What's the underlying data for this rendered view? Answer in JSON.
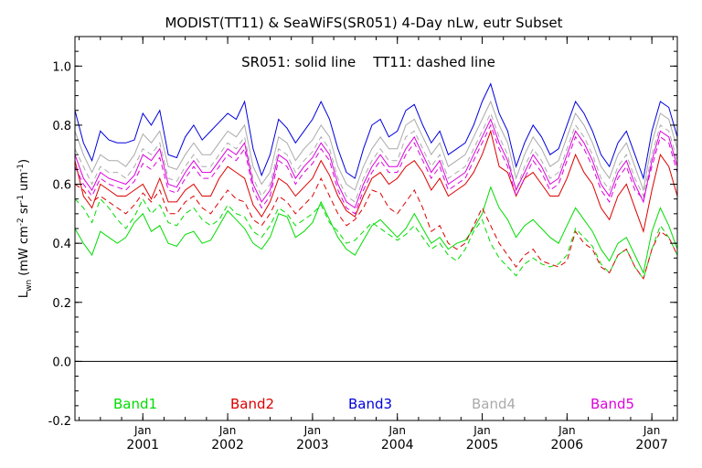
{
  "chart_data": {
    "type": "line",
    "title": "MODIST(TT11) & SeaWiFS(SR051) 4-Day nLw, eutr Subset",
    "subtitle": "SR051: solid line    TT11: dashed line",
    "ylabel_main": "L",
    "ylabel_sub": "wn",
    "ylabel_units": "(mW cm",
    "ylabel_exp1": "-2",
    "ylabel_mid": " sr",
    "ylabel_exp2": "-1",
    "ylabel_mid2": " um",
    "ylabel_exp3": "-1",
    "ylabel_end": ")",
    "ylim": [
      -0.2,
      1.1
    ],
    "yticks": [
      -0.2,
      0.0,
      0.2,
      0.4,
      0.6,
      0.8,
      1.0
    ],
    "ytick_labels": [
      "-0.2",
      "0.0",
      "0.2",
      "0.4",
      "0.6",
      "0.8",
      "1.0"
    ],
    "xlim": [
      2000.2,
      2007.3
    ],
    "xticks": [
      {
        "month": "Jan",
        "year": "2001",
        "x": 2001.0
      },
      {
        "month": "Jan",
        "year": "2002",
        "x": 2002.0
      },
      {
        "month": "Jan",
        "year": "2003",
        "x": 2003.0
      },
      {
        "month": "Jan",
        "year": "2004",
        "x": 2004.0
      },
      {
        "month": "Jan",
        "year": "2005",
        "x": 2005.0
      },
      {
        "month": "Jan",
        "year": "2006",
        "x": 2006.0
      },
      {
        "month": "Jan",
        "year": "2007",
        "x": 2007.0
      }
    ],
    "zero_line": 0.0,
    "x": [
      2000.2,
      2000.3,
      2000.4,
      2000.5,
      2000.6,
      2000.7,
      2000.8,
      2000.9,
      2001.0,
      2001.1,
      2001.2,
      2001.3,
      2001.4,
      2001.5,
      2001.6,
      2001.7,
      2001.8,
      2001.9,
      2002.0,
      2002.1,
      2002.2,
      2002.3,
      2002.4,
      2002.5,
      2002.6,
      2002.7,
      2002.8,
      2002.9,
      2003.0,
      2003.1,
      2003.2,
      2003.3,
      2003.4,
      2003.5,
      2003.6,
      2003.7,
      2003.8,
      2003.9,
      2004.0,
      2004.1,
      2004.2,
      2004.3,
      2004.4,
      2004.5,
      2004.6,
      2004.7,
      2004.8,
      2004.9,
      2005.0,
      2005.1,
      2005.2,
      2005.3,
      2005.4,
      2005.5,
      2005.6,
      2005.7,
      2005.8,
      2005.9,
      2006.0,
      2006.1,
      2006.2,
      2006.3,
      2006.4,
      2006.5,
      2006.6,
      2006.7,
      2006.8,
      2006.9,
      2007.0,
      2007.1,
      2007.2,
      2007.3
    ],
    "series": [
      {
        "name": "Band1",
        "color": "#00dd00",
        "solid": [
          0.45,
          0.4,
          0.36,
          0.44,
          0.42,
          0.4,
          0.42,
          0.47,
          0.5,
          0.44,
          0.46,
          0.4,
          0.39,
          0.43,
          0.44,
          0.4,
          0.41,
          0.46,
          0.51,
          0.48,
          0.45,
          0.4,
          0.38,
          0.42,
          0.5,
          0.49,
          0.42,
          0.44,
          0.47,
          0.54,
          0.48,
          0.42,
          0.38,
          0.36,
          0.41,
          0.46,
          0.48,
          0.45,
          0.42,
          0.45,
          0.5,
          0.45,
          0.4,
          0.42,
          0.38,
          0.4,
          0.41,
          0.45,
          0.5,
          0.59,
          0.52,
          0.48,
          0.42,
          0.46,
          0.48,
          0.45,
          0.42,
          0.4,
          0.46,
          0.52,
          0.48,
          0.44,
          0.38,
          0.34,
          0.4,
          0.42,
          0.36,
          0.3,
          0.44,
          0.52,
          0.46,
          0.38
        ],
        "dashed": [
          0.55,
          0.52,
          0.47,
          0.55,
          0.52,
          0.48,
          0.45,
          0.49,
          0.55,
          0.5,
          0.53,
          0.47,
          0.46,
          0.5,
          0.52,
          0.48,
          0.46,
          0.48,
          0.53,
          0.5,
          0.49,
          0.44,
          0.42,
          0.46,
          0.52,
          0.5,
          0.46,
          0.48,
          0.5,
          0.53,
          0.47,
          0.44,
          0.4,
          0.41,
          0.44,
          0.47,
          0.45,
          0.43,
          0.41,
          0.43,
          0.46,
          0.42,
          0.38,
          0.4,
          0.36,
          0.34,
          0.38,
          0.44,
          0.48,
          0.4,
          0.35,
          0.32,
          0.29,
          0.33,
          0.35,
          0.33,
          0.32,
          0.33,
          0.36,
          0.45,
          0.42,
          0.39,
          0.33,
          0.3,
          0.36,
          0.38,
          0.32,
          0.28,
          0.38,
          0.46,
          0.42,
          0.36
        ]
      },
      {
        "name": "Band2",
        "color": "#dd0000",
        "solid": [
          0.68,
          0.56,
          0.52,
          0.6,
          0.58,
          0.56,
          0.56,
          0.58,
          0.6,
          0.55,
          0.62,
          0.54,
          0.54,
          0.58,
          0.6,
          0.56,
          0.56,
          0.62,
          0.66,
          0.64,
          0.62,
          0.53,
          0.49,
          0.54,
          0.62,
          0.6,
          0.56,
          0.59,
          0.62,
          0.68,
          0.63,
          0.56,
          0.51,
          0.49,
          0.56,
          0.62,
          0.64,
          0.6,
          0.62,
          0.66,
          0.68,
          0.64,
          0.58,
          0.62,
          0.56,
          0.58,
          0.6,
          0.64,
          0.7,
          0.78,
          0.66,
          0.64,
          0.56,
          0.62,
          0.64,
          0.6,
          0.56,
          0.56,
          0.62,
          0.7,
          0.64,
          0.6,
          0.52,
          0.48,
          0.56,
          0.6,
          0.52,
          0.44,
          0.58,
          0.7,
          0.66,
          0.56
        ],
        "dashed": [
          0.6,
          0.58,
          0.54,
          0.56,
          0.54,
          0.52,
          0.5,
          0.53,
          0.57,
          0.54,
          0.58,
          0.5,
          0.5,
          0.54,
          0.56,
          0.52,
          0.5,
          0.54,
          0.58,
          0.55,
          0.54,
          0.48,
          0.46,
          0.5,
          0.56,
          0.54,
          0.5,
          0.53,
          0.56,
          0.62,
          0.56,
          0.5,
          0.46,
          0.48,
          0.52,
          0.58,
          0.57,
          0.52,
          0.5,
          0.54,
          0.58,
          0.52,
          0.44,
          0.46,
          0.4,
          0.38,
          0.4,
          0.46,
          0.52,
          0.46,
          0.4,
          0.36,
          0.32,
          0.36,
          0.38,
          0.34,
          0.33,
          0.32,
          0.34,
          0.44,
          0.4,
          0.38,
          0.32,
          0.3,
          0.36,
          0.38,
          0.32,
          0.28,
          0.38,
          0.44,
          0.42,
          0.36
        ]
      },
      {
        "name": "Band3",
        "color": "#0000dd",
        "solid": [
          0.85,
          0.74,
          0.68,
          0.78,
          0.75,
          0.74,
          0.74,
          0.75,
          0.84,
          0.8,
          0.85,
          0.7,
          0.69,
          0.76,
          0.8,
          0.75,
          0.78,
          0.81,
          0.84,
          0.82,
          0.88,
          0.72,
          0.63,
          0.7,
          0.82,
          0.79,
          0.74,
          0.78,
          0.82,
          0.88,
          0.82,
          0.72,
          0.64,
          0.62,
          0.72,
          0.8,
          0.82,
          0.76,
          0.78,
          0.85,
          0.87,
          0.8,
          0.74,
          0.78,
          0.7,
          0.72,
          0.74,
          0.8,
          0.88,
          0.94,
          0.84,
          0.78,
          0.66,
          0.74,
          0.8,
          0.76,
          0.7,
          0.72,
          0.8,
          0.88,
          0.84,
          0.78,
          0.7,
          0.66,
          0.74,
          0.78,
          0.7,
          0.62,
          0.78,
          0.88,
          0.86,
          0.76
        ]
      },
      {
        "name": "Band4",
        "color": "#aaaaaa",
        "solid": [
          0.78,
          0.7,
          0.64,
          0.7,
          0.68,
          0.68,
          0.66,
          0.7,
          0.77,
          0.74,
          0.78,
          0.66,
          0.65,
          0.7,
          0.74,
          0.7,
          0.7,
          0.74,
          0.78,
          0.76,
          0.8,
          0.66,
          0.6,
          0.64,
          0.76,
          0.74,
          0.68,
          0.72,
          0.75,
          0.8,
          0.76,
          0.66,
          0.6,
          0.58,
          0.66,
          0.72,
          0.76,
          0.72,
          0.72,
          0.8,
          0.82,
          0.76,
          0.7,
          0.74,
          0.66,
          0.68,
          0.7,
          0.76,
          0.82,
          0.88,
          0.8,
          0.74,
          0.62,
          0.7,
          0.76,
          0.72,
          0.66,
          0.68,
          0.76,
          0.84,
          0.8,
          0.74,
          0.66,
          0.62,
          0.7,
          0.74,
          0.66,
          0.58,
          0.74,
          0.84,
          0.82,
          0.72
        ],
        "dashed": [
          0.72,
          0.66,
          0.6,
          0.66,
          0.64,
          0.64,
          0.62,
          0.66,
          0.72,
          0.7,
          0.74,
          0.62,
          0.61,
          0.66,
          0.7,
          0.66,
          0.66,
          0.7,
          0.74,
          0.72,
          0.76,
          0.62,
          0.56,
          0.6,
          0.72,
          0.7,
          0.64,
          0.68,
          0.71,
          0.76,
          0.72,
          0.62,
          0.56,
          0.54,
          0.62,
          0.68,
          0.72,
          0.68,
          0.68,
          0.76,
          0.78,
          0.72,
          0.66,
          0.7,
          0.62,
          0.64,
          0.66,
          0.72,
          0.78,
          0.84,
          0.76,
          0.7,
          0.58,
          0.66,
          0.72,
          0.68,
          0.62,
          0.64,
          0.72,
          0.8,
          0.76,
          0.7,
          0.62,
          0.58,
          0.66,
          0.7,
          0.62,
          0.56,
          0.7,
          0.8,
          0.78,
          0.68
        ]
      },
      {
        "name": "Band5",
        "color": "#dd00dd",
        "solid": [
          0.7,
          0.62,
          0.58,
          0.64,
          0.62,
          0.61,
          0.6,
          0.63,
          0.7,
          0.68,
          0.72,
          0.6,
          0.59,
          0.64,
          0.68,
          0.64,
          0.64,
          0.68,
          0.72,
          0.7,
          0.74,
          0.6,
          0.54,
          0.58,
          0.7,
          0.68,
          0.62,
          0.66,
          0.69,
          0.74,
          0.7,
          0.6,
          0.54,
          0.52,
          0.6,
          0.66,
          0.7,
          0.66,
          0.66,
          0.72,
          0.76,
          0.7,
          0.64,
          0.68,
          0.6,
          0.62,
          0.64,
          0.7,
          0.76,
          0.82,
          0.74,
          0.68,
          0.58,
          0.64,
          0.7,
          0.66,
          0.6,
          0.62,
          0.7,
          0.78,
          0.74,
          0.68,
          0.6,
          0.56,
          0.64,
          0.68,
          0.6,
          0.54,
          0.68,
          0.78,
          0.76,
          0.66
        ],
        "dashed": [
          0.66,
          0.6,
          0.56,
          0.62,
          0.6,
          0.59,
          0.58,
          0.61,
          0.67,
          0.65,
          0.69,
          0.58,
          0.57,
          0.62,
          0.66,
          0.62,
          0.62,
          0.66,
          0.7,
          0.68,
          0.72,
          0.58,
          0.52,
          0.56,
          0.68,
          0.66,
          0.6,
          0.64,
          0.67,
          0.72,
          0.68,
          0.58,
          0.52,
          0.5,
          0.58,
          0.64,
          0.68,
          0.64,
          0.64,
          0.7,
          0.74,
          0.68,
          0.62,
          0.66,
          0.58,
          0.6,
          0.62,
          0.68,
          0.74,
          0.8,
          0.72,
          0.66,
          0.56,
          0.62,
          0.68,
          0.64,
          0.58,
          0.6,
          0.68,
          0.76,
          0.72,
          0.66,
          0.58,
          0.54,
          0.62,
          0.66,
          0.58,
          0.55,
          0.66,
          0.76,
          0.74,
          0.64
        ]
      }
    ],
    "legend_placement": "bottom inside plot"
  }
}
